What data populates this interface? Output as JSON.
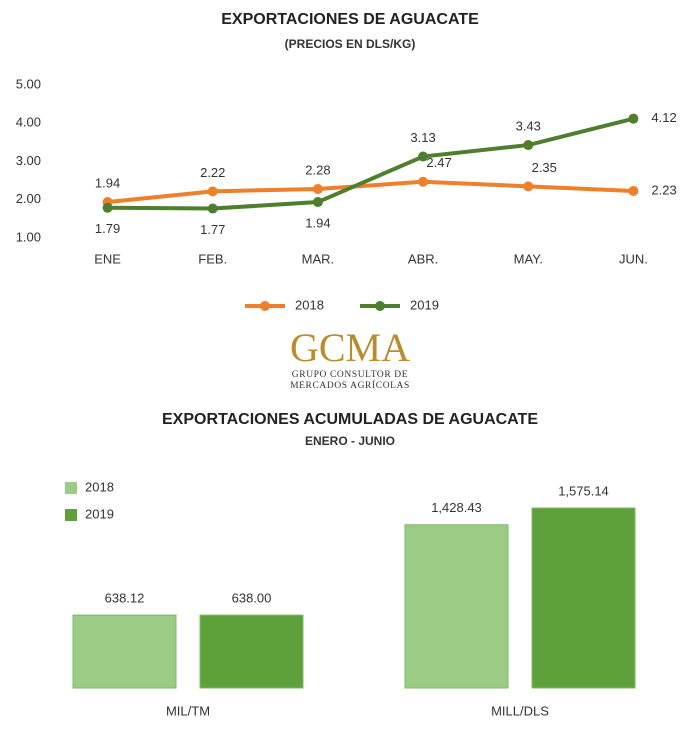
{
  "chart_data": [
    {
      "type": "line",
      "title": "EXPORTACIONES DE AGUACATE",
      "subtitle": "(PRECIOS EN DLS/KG)",
      "categories": [
        "ENE",
        "FEB.",
        "MAR.",
        "ABR.",
        "MAY.",
        "JUN."
      ],
      "series": [
        {
          "name": "2018",
          "color": "#f07f2a",
          "values": [
            1.94,
            2.22,
            2.28,
            2.47,
            2.35,
            2.23
          ]
        },
        {
          "name": "2019",
          "color": "#4e7e2e",
          "values": [
            1.79,
            1.77,
            1.94,
            3.13,
            3.43,
            4.12
          ]
        }
      ],
      "ylim": [
        1,
        5
      ],
      "yticks": [
        {
          "value": 1,
          "label": "1.00"
        },
        {
          "value": 2,
          "label": "2.00"
        },
        {
          "value": 3,
          "label": "3.00"
        },
        {
          "value": 4,
          "label": "4.00"
        },
        {
          "value": 5,
          "label": "5.00"
        }
      ],
      "grid": false,
      "legend": "bottom"
    },
    {
      "type": "bar",
      "title": "EXPORTACIONES ACUMULADAS DE AGUACATE",
      "subtitle": "ENERO - JUNIO",
      "categories": [
        "MIL/TM",
        "MILL/DLS"
      ],
      "series": [
        {
          "name": "2018",
          "color": "#9ccb86",
          "values": [
            638.12,
            1428.43
          ],
          "value_labels": [
            "638.12",
            "1,428.43"
          ]
        },
        {
          "name": "2019",
          "color": "#5ea13a",
          "values": [
            638,
            1575.14
          ],
          "value_labels": [
            "638.00",
            "1,575.14"
          ]
        }
      ],
      "legend": "top-left"
    }
  ],
  "logo": {
    "text": "GCMA",
    "line1": "GRUPO CONSULTOR DE",
    "line2": "MERCADOS AGRÍCOLAS"
  }
}
